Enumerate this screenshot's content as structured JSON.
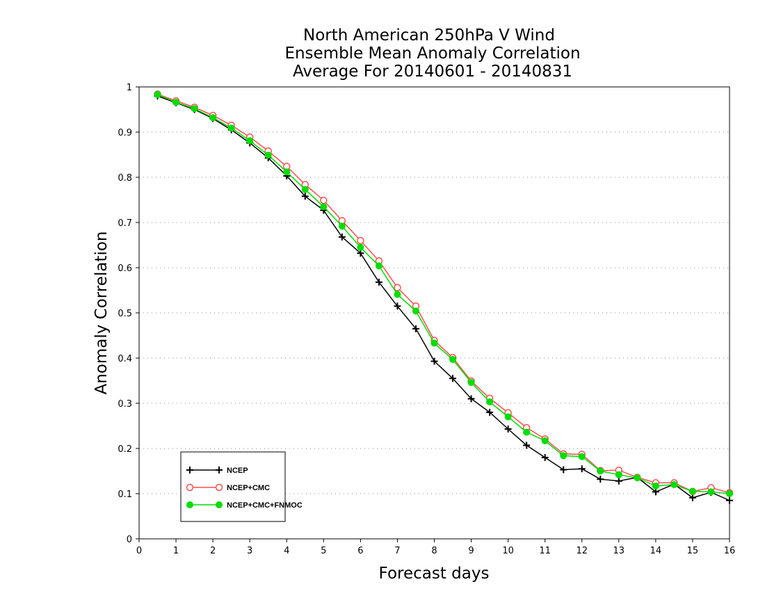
{
  "chart_data": {
    "type": "line",
    "title": [
      "North American 250hPa V Wind",
      "Ensemble Mean Anomaly Correlation",
      "Average For 20140601 - 20140831"
    ],
    "xlabel": "Forecast days",
    "ylabel": "Anomaly Correlation",
    "xlim": [
      0,
      16
    ],
    "ylim": [
      0,
      1
    ],
    "xticks": [
      "0",
      "1",
      "2",
      "3",
      "4",
      "5",
      "6",
      "7",
      "8",
      "9",
      "10",
      "11",
      "12",
      "13",
      "14",
      "15",
      "16"
    ],
    "yticks": [
      "0",
      "0.1",
      "0.2",
      "0.3",
      "0.4",
      "0.5",
      "0.6",
      "0.7",
      "0.8",
      "0.9",
      "1"
    ],
    "grid": "horizontal dotted",
    "legend_position": "bottom-left",
    "x": [
      0.5,
      1,
      1.5,
      2,
      2.5,
      3,
      3.5,
      4,
      4.5,
      5,
      5.5,
      6,
      6.5,
      7,
      7.5,
      8,
      8.5,
      9,
      9.5,
      10,
      10.5,
      11,
      11.5,
      12,
      12.5,
      13,
      13.5,
      14,
      14.5,
      15,
      15.5,
      16
    ],
    "series": [
      {
        "name": "NCEP",
        "color": "#000000",
        "marker": "plus",
        "values": [
          0.98,
          0.965,
          0.95,
          0.93,
          0.905,
          0.876,
          0.843,
          0.803,
          0.758,
          0.727,
          0.668,
          0.632,
          0.568,
          0.515,
          0.465,
          0.393,
          0.355,
          0.31,
          0.28,
          0.243,
          0.207,
          0.18,
          0.153,
          0.155,
          0.132,
          0.128,
          0.136,
          0.104,
          0.121,
          0.091,
          0.103,
          0.085
        ]
      },
      {
        "name": "NCEP+CMC",
        "color": "#ff4d4d",
        "marker": "open-circle",
        "values": [
          0.984,
          0.969,
          0.955,
          0.937,
          0.915,
          0.889,
          0.858,
          0.824,
          0.784,
          0.749,
          0.704,
          0.66,
          0.615,
          0.556,
          0.515,
          0.439,
          0.401,
          0.349,
          0.311,
          0.279,
          0.246,
          0.221,
          0.188,
          0.187,
          0.151,
          0.152,
          0.136,
          0.124,
          0.124,
          0.105,
          0.113,
          0.102
        ]
      },
      {
        "name": "NCEP+CMC+FNMOC",
        "color": "#00dd00",
        "marker": "filled-circle",
        "values": [
          0.983,
          0.966,
          0.952,
          0.932,
          0.909,
          0.881,
          0.849,
          0.812,
          0.773,
          0.735,
          0.692,
          0.645,
          0.604,
          0.541,
          0.504,
          0.433,
          0.397,
          0.346,
          0.303,
          0.27,
          0.236,
          0.217,
          0.184,
          0.182,
          0.15,
          0.142,
          0.135,
          0.117,
          0.12,
          0.105,
          0.104,
          0.1
        ]
      }
    ]
  }
}
